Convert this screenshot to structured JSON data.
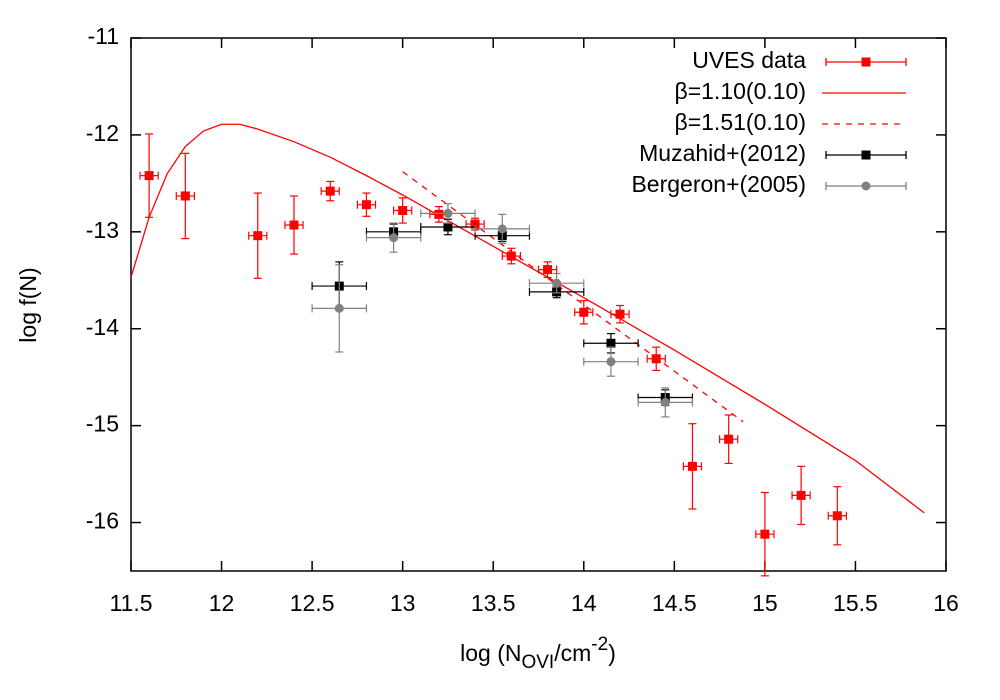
{
  "chart_data": {
    "type": "scatter",
    "xlabel": [
      "log (N",
      "OVI",
      "/cm",
      "-2",
      ")"
    ],
    "ylabel": "log f(N)",
    "xlim": [
      11.5,
      16
    ],
    "xticks": [
      11.5,
      12,
      12.5,
      13,
      13.5,
      14,
      14.5,
      15,
      15.5,
      16
    ],
    "ylim": [
      -16.5,
      -11
    ],
    "yticks": [
      -11,
      -12,
      -13,
      -14,
      -15,
      -16
    ],
    "legend": "upper-right",
    "series": [
      {
        "name": "UVES data",
        "type": "scatter",
        "marker": "square",
        "color": "#ff0000",
        "x": [
          11.6,
          11.8,
          12.2,
          12.4,
          12.6,
          12.8,
          13.0,
          13.2,
          13.4,
          13.6,
          13.8,
          14.0,
          14.2,
          14.4,
          14.6,
          14.8,
          15.0,
          15.2,
          15.4
        ],
        "values": [
          -12.42,
          -12.63,
          -13.04,
          -12.93,
          -12.58,
          -12.72,
          -12.78,
          -12.82,
          -12.92,
          -13.25,
          -13.39,
          -13.83,
          -13.85,
          -14.31,
          -15.42,
          -15.14,
          -16.12,
          -15.72,
          -15.93
        ],
        "xerr": [
          0.05,
          0.05,
          0.05,
          0.05,
          0.05,
          0.05,
          0.05,
          0.05,
          0.05,
          0.05,
          0.05,
          0.05,
          0.05,
          0.05,
          0.05,
          0.05,
          0.05,
          0.05,
          0.05
        ],
        "yerr": [
          0.43,
          0.44,
          0.44,
          0.3,
          0.1,
          0.12,
          0.13,
          0.08,
          0.06,
          0.08,
          0.08,
          0.12,
          0.09,
          0.12,
          0.44,
          0.25,
          0.43,
          0.3,
          0.3
        ]
      },
      {
        "name": "β=1.10(0.10)",
        "type": "line",
        "dash": false,
        "color": "#ff0000",
        "x": [
          11.5,
          11.6,
          11.7,
          11.8,
          11.9,
          12.0,
          12.1,
          12.2,
          12.4,
          12.6,
          12.8,
          13.0,
          13.5,
          14.0,
          14.5,
          15.0,
          15.5,
          15.88
        ],
        "values": [
          -13.47,
          -12.85,
          -12.4,
          -12.12,
          -11.96,
          -11.89,
          -11.89,
          -11.94,
          -12.07,
          -12.23,
          -12.42,
          -12.62,
          -13.15,
          -13.68,
          -14.22,
          -14.78,
          -15.36,
          -15.9
        ]
      },
      {
        "name": "β=1.51(0.10)",
        "type": "line",
        "dash": true,
        "color": "#ff0000",
        "x": [
          13.0,
          14.88
        ],
        "values": [
          -12.38,
          -14.96
        ]
      },
      {
        "name": "Muzahid+(2012)",
        "type": "scatter",
        "marker": "square",
        "color": "#000000",
        "x": [
          12.65,
          12.95,
          13.25,
          13.55,
          13.85,
          14.15,
          14.45
        ],
        "values": [
          -13.56,
          -13.0,
          -12.95,
          -13.04,
          -13.62,
          -14.15,
          -14.71
        ],
        "xerr": [
          0.15,
          0.15,
          0.15,
          0.15,
          0.15,
          0.15,
          0.15
        ],
        "yerr": [
          0.25,
          0.08,
          0.08,
          0.06,
          0.06,
          0.1,
          0.08
        ]
      },
      {
        "name": "Bergeron+(2005)",
        "type": "scatter",
        "marker": "circle",
        "color": "#808080",
        "x": [
          12.65,
          12.95,
          13.25,
          13.55,
          13.85,
          14.15,
          14.45
        ],
        "values": [
          -13.79,
          -13.06,
          -12.81,
          -12.97,
          -13.53,
          -14.34,
          -14.76
        ],
        "xerr": [
          0.15,
          0.15,
          0.15,
          0.15,
          0.15,
          0.15,
          0.15
        ],
        "yerr": [
          0.45,
          0.15,
          0.1,
          0.15,
          0.1,
          0.15,
          0.15
        ]
      }
    ]
  }
}
